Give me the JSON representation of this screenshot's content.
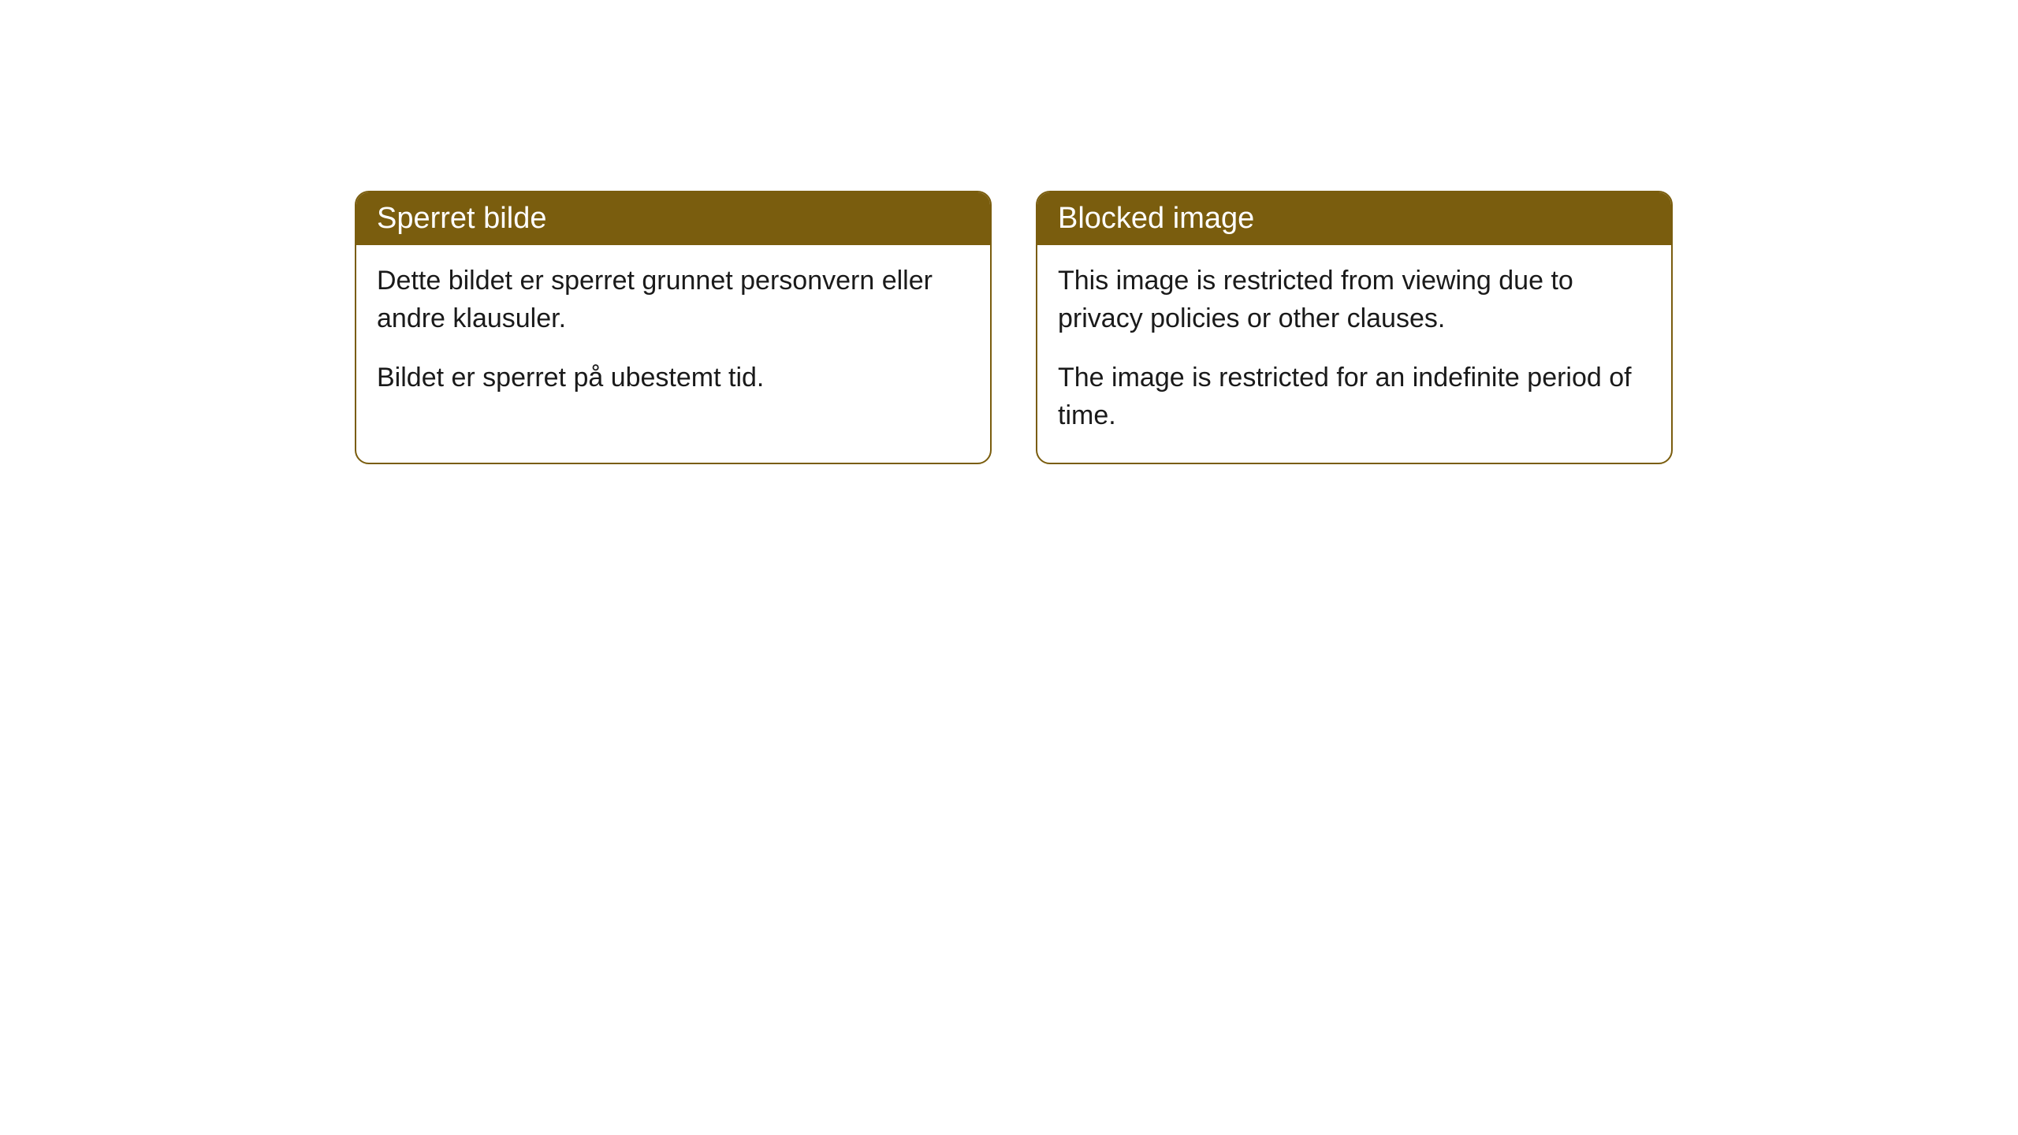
{
  "cards": [
    {
      "header": "Sperret bilde",
      "paragraph1": "Dette bildet er sperret grunnet personvern eller andre klausuler.",
      "paragraph2": "Bildet er sperret på ubestemt tid."
    },
    {
      "header": "Blocked image",
      "paragraph1": "This image is restricted from viewing due to privacy policies or other clauses.",
      "paragraph2": "The image is restricted for an indefinite period of time."
    }
  ],
  "styling": {
    "header_bg_color": "#7a5d0e",
    "header_text_color": "#ffffff",
    "body_text_color": "#1a1a1a",
    "card_border_color": "#7a5d0e",
    "card_bg_color": "#ffffff",
    "page_bg_color": "#ffffff",
    "border_radius": 18,
    "header_font_size": 38,
    "body_font_size": 34
  }
}
